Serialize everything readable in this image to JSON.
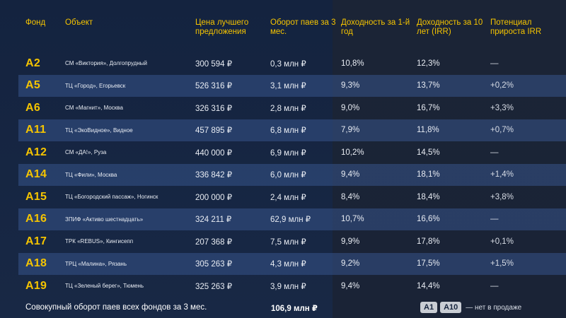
{
  "headers": {
    "fund": "Фонд",
    "object": "Объект",
    "price": "Цена лучшего предложения",
    "turnover": "Оборот паев за 3 мес.",
    "yield_1y": "Доходность за 1-й год",
    "yield_10y": "Доходность за 10 лет (IRR)",
    "potential": "Потенциал прироста IRR"
  },
  "rows": [
    {
      "fund": "A2",
      "object": "СМ «Виктория», Долгопрудный",
      "price": "300 594 ₽",
      "turnover": "0,3 млн ₽",
      "yield_1y": "10,8%",
      "yield_10y": "12,3%",
      "potential": "—"
    },
    {
      "fund": "A5",
      "object": "ТЦ «Город», Егорьевск",
      "price": "526 316 ₽",
      "turnover": "3,1 млн ₽",
      "yield_1y": "9,3%",
      "yield_10y": "13,7%",
      "potential": "+0,2%"
    },
    {
      "fund": "A6",
      "object": "СМ «Магнит», Москва",
      "price": "326 316 ₽",
      "turnover": "2,8 млн ₽",
      "yield_1y": "9,0%",
      "yield_10y": "16,7%",
      "potential": "+3,3%"
    },
    {
      "fund": "A11",
      "object": "ТЦ «ЭкоВидное», Видное",
      "price": "457 895 ₽",
      "turnover": "6,8 млн ₽",
      "yield_1y": "7,9%",
      "yield_10y": "11,8%",
      "potential": "+0,7%"
    },
    {
      "fund": "A12",
      "object": "СМ «ДА!», Руза",
      "price": "440 000 ₽",
      "turnover": "6,9 млн ₽",
      "yield_1y": "10,2%",
      "yield_10y": "14,5%",
      "potential": "—"
    },
    {
      "fund": "A14",
      "object": "ТЦ «Фили», Москва",
      "price": "336 842 ₽",
      "turnover": "6,0 млн ₽",
      "yield_1y": "9,4%",
      "yield_10y": "18,1%",
      "potential": "+1,4%"
    },
    {
      "fund": "A15",
      "object": "ТЦ «Богородский пассаж», Ногинск",
      "price": "200 000 ₽",
      "turnover": "2,4 млн ₽",
      "yield_1y": "8,4%",
      "yield_10y": "18,4%",
      "potential": "+3,8%"
    },
    {
      "fund": "A16",
      "object": "ЗПИФ «Активо шестнадцать»",
      "price": "324 211 ₽",
      "turnover": "62,9 млн ₽",
      "yield_1y": "10,7%",
      "yield_10y": "16,6%",
      "potential": "—"
    },
    {
      "fund": "A17",
      "object": "ТРК «REBUS», Кингисепп",
      "price": "207 368 ₽",
      "turnover": "7,5 млн ₽",
      "yield_1y": "9,9%",
      "yield_10y": "17,8%",
      "potential": "+0,1%"
    },
    {
      "fund": "A18",
      "object": "ТРЦ «Малина», Рязань",
      "price": "305 263 ₽",
      "turnover": "4,3 млн ₽",
      "yield_1y": "9,2%",
      "yield_10y": "17,5%",
      "potential": "+1,5%"
    },
    {
      "fund": "A19",
      "object": "ТЦ «Зеленый берег», Тюмень",
      "price": "325 263 ₽",
      "turnover": "3,9 млн ₽",
      "yield_1y": "9,4%",
      "yield_10y": "14,4%",
      "potential": "—"
    }
  ],
  "footer": {
    "label": "Совокупный оборот паев всех фондов за 3 мес.",
    "total": "106,9 млн ₽",
    "legend_badges": [
      "A1",
      "A10"
    ],
    "legend_note": "— нет в продаже"
  }
}
